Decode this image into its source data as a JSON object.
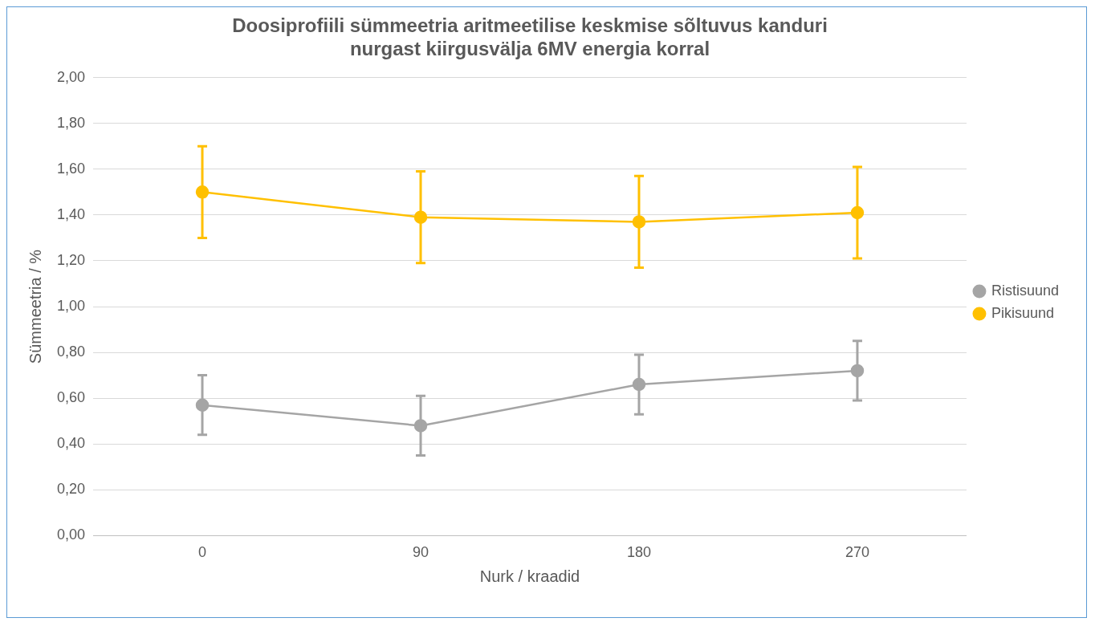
{
  "chart_data": {
    "type": "line",
    "title": "Doosiprofiili sümmeetria aritmeetilise keskmise sõltuvus kanduri nurgast kiirgusvälja 6MV energia korral",
    "xlabel": "Nurk / kraadid",
    "ylabel": "Sümmeetria / %",
    "categories": [
      "0",
      "90",
      "180",
      "270"
    ],
    "series": [
      {
        "name": "Ristisuund",
        "color": "#a5a5a5",
        "values": [
          0.57,
          0.48,
          0.66,
          0.72
        ],
        "errors": [
          0.13,
          0.13,
          0.13,
          0.13
        ]
      },
      {
        "name": "Pikisuund",
        "color": "#ffc000",
        "values": [
          1.5,
          1.39,
          1.37,
          1.41
        ],
        "errors": [
          0.2,
          0.2,
          0.2,
          0.2
        ]
      }
    ],
    "ylim": [
      0,
      2
    ],
    "yticks": [
      {
        "value": 0,
        "label": "0,00"
      },
      {
        "value": 0.2,
        "label": "0,20"
      },
      {
        "value": 0.4,
        "label": "0,40"
      },
      {
        "value": 0.6,
        "label": "0,60"
      },
      {
        "value": 0.8,
        "label": "0,80"
      },
      {
        "value": 1,
        "label": "1,00"
      },
      {
        "value": 1.2,
        "label": "1,20"
      },
      {
        "value": 1.4,
        "label": "1,40"
      },
      {
        "value": 1.6,
        "label": "1,60"
      },
      {
        "value": 1.8,
        "label": "1,80"
      },
      {
        "value": 2,
        "label": "2,00"
      }
    ],
    "grid": "y",
    "legend": "right",
    "marker": "circle",
    "line_style": "solid"
  }
}
